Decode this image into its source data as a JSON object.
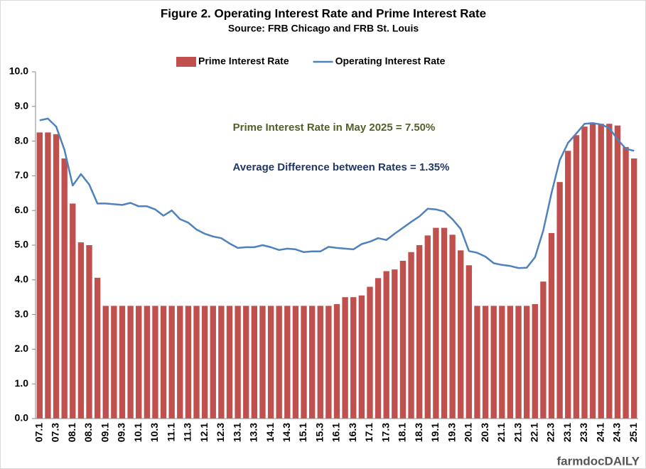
{
  "chart_data": {
    "type": "bar_line",
    "title": "Figure 2. Operating Interest Rate and Prime Interest Rate",
    "subtitle": "Source: FRB Chicago and FRB St. Louis",
    "annotations": [
      {
        "text": "Prime Interest Rate in May 2025 = 7.50%",
        "color": "#4f6228"
      },
      {
        "text": "Average Difference between Rates = 1.35%",
        "color": "#1f3864"
      }
    ],
    "brand": "farmdocDAILY",
    "legend": "top",
    "grid": false,
    "categories": [
      "07.1",
      null,
      "07.3",
      null,
      "08.1",
      null,
      "08.3",
      null,
      "09.1",
      null,
      "09.3",
      null,
      "10.1",
      null,
      "10.3",
      null,
      "11.1",
      null,
      "11.3",
      null,
      "12.1",
      null,
      "12.3",
      null,
      "13.1",
      null,
      "13.3",
      null,
      "14.1",
      null,
      "14.3",
      null,
      "15.1",
      null,
      "15.3",
      null,
      "16.1",
      null,
      "16.3",
      null,
      "17.1",
      null,
      "17.3",
      null,
      "18.1",
      null,
      "18.3",
      null,
      "19.1",
      null,
      "19.3",
      null,
      "20.1",
      null,
      "20.3",
      null,
      "21.1",
      null,
      "21.3",
      null,
      "22.1",
      null,
      "22.3",
      null,
      "23.1",
      null,
      "23.3",
      null,
      "24.1",
      null,
      "24.3",
      null,
      "25.1"
    ],
    "series": [
      {
        "name": "Prime Interest Rate",
        "kind": "bar",
        "color": "#c0504d",
        "values": [
          8.25,
          8.25,
          8.2,
          7.5,
          6.2,
          5.08,
          5.0,
          4.06,
          3.25,
          3.25,
          3.25,
          3.25,
          3.25,
          3.25,
          3.25,
          3.25,
          3.25,
          3.25,
          3.25,
          3.25,
          3.25,
          3.25,
          3.25,
          3.25,
          3.25,
          3.25,
          3.25,
          3.25,
          3.25,
          3.25,
          3.25,
          3.25,
          3.25,
          3.25,
          3.25,
          3.25,
          3.3,
          3.5,
          3.5,
          3.55,
          3.8,
          4.05,
          4.25,
          4.3,
          4.55,
          4.8,
          5.0,
          5.28,
          5.5,
          5.5,
          5.3,
          4.85,
          4.42,
          3.25,
          3.25,
          3.25,
          3.25,
          3.25,
          3.25,
          3.25,
          3.3,
          3.95,
          5.35,
          6.82,
          7.72,
          8.17,
          8.42,
          8.5,
          8.5,
          8.5,
          8.45,
          7.83,
          7.5
        ]
      },
      {
        "name": "Operating Interest Rate",
        "kind": "line",
        "color": "#4f81bd",
        "values": [
          8.6,
          8.65,
          8.42,
          7.75,
          6.72,
          7.05,
          6.75,
          6.2,
          6.2,
          6.18,
          6.16,
          6.22,
          6.12,
          6.12,
          6.03,
          5.85,
          6.0,
          5.75,
          5.65,
          5.45,
          5.33,
          5.25,
          5.2,
          5.05,
          4.92,
          4.94,
          4.94,
          5.0,
          4.94,
          4.86,
          4.9,
          4.88,
          4.8,
          4.82,
          4.82,
          4.95,
          4.92,
          4.9,
          4.88,
          5.03,
          5.1,
          5.2,
          5.15,
          5.33,
          5.5,
          5.67,
          5.83,
          6.05,
          6.03,
          5.97,
          5.75,
          5.47,
          4.83,
          4.78,
          4.67,
          4.48,
          4.43,
          4.4,
          4.34,
          4.35,
          4.65,
          5.42,
          6.5,
          7.45,
          7.95,
          8.22,
          8.5,
          8.52,
          8.48,
          8.38,
          8.05,
          7.78,
          7.72
        ]
      }
    ],
    "ylim": [
      0,
      10
    ],
    "yticks": [
      {
        "value": 0,
        "label": "0.0"
      },
      {
        "value": 1,
        "label": "1.0"
      },
      {
        "value": 2,
        "label": "2.0"
      },
      {
        "value": 3,
        "label": "3.0"
      },
      {
        "value": 4,
        "label": "4.0"
      },
      {
        "value": 5,
        "label": "5.0"
      },
      {
        "value": 6,
        "label": "6.0"
      },
      {
        "value": 7,
        "label": "7.0"
      },
      {
        "value": 8,
        "label": "8.0"
      },
      {
        "value": 9,
        "label": "9.0"
      },
      {
        "value": 10,
        "label": "10.0"
      }
    ]
  }
}
